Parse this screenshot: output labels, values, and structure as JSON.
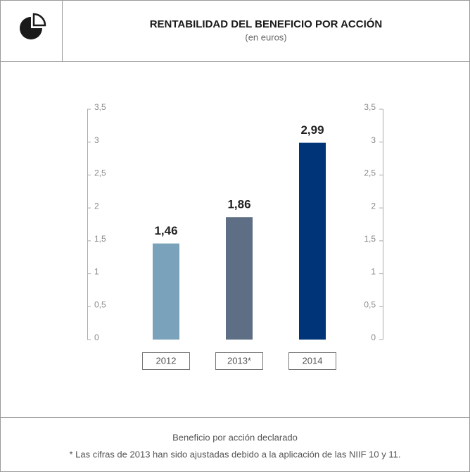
{
  "chart_data": {
    "type": "bar",
    "title": "RENTABILIDAD DEL BENEFICIO POR ACCIÓN",
    "subtitle": "(en euros)",
    "categories": [
      "2012",
      "2013*",
      "2014"
    ],
    "series": [
      {
        "name": "Beneficio por acción declarado",
        "values": [
          1.46,
          1.86,
          2.99
        ],
        "value_labels": [
          "1,46",
          "1,86",
          "2,99"
        ],
        "colors": [
          "#7aa3bb",
          "#5d6e85",
          "#003478"
        ]
      }
    ],
    "ylim": [
      0,
      3.5
    ],
    "yticks": [
      0,
      {
        "value": 0.5,
        "label": "0,5"
      },
      1,
      {
        "value": 1.5,
        "label": "1,5"
      },
      2,
      {
        "value": 2.5,
        "label": "2,5"
      },
      3,
      {
        "value": 3.5,
        "label": "3,5"
      }
    ],
    "y2lim": [
      0,
      3.5
    ],
    "y2ticks": [
      0,
      {
        "value": 0.5,
        "label": "0,5"
      },
      1,
      {
        "value": 1.5,
        "label": "1,5"
      },
      2,
      {
        "value": 2.5,
        "label": "2,5"
      },
      3,
      {
        "value": 3.5,
        "label": "3,5"
      }
    ],
    "note": "* Las cifras de 2013 han sido ajustadas debido a la aplicación de las NIIF 10 y 11."
  }
}
